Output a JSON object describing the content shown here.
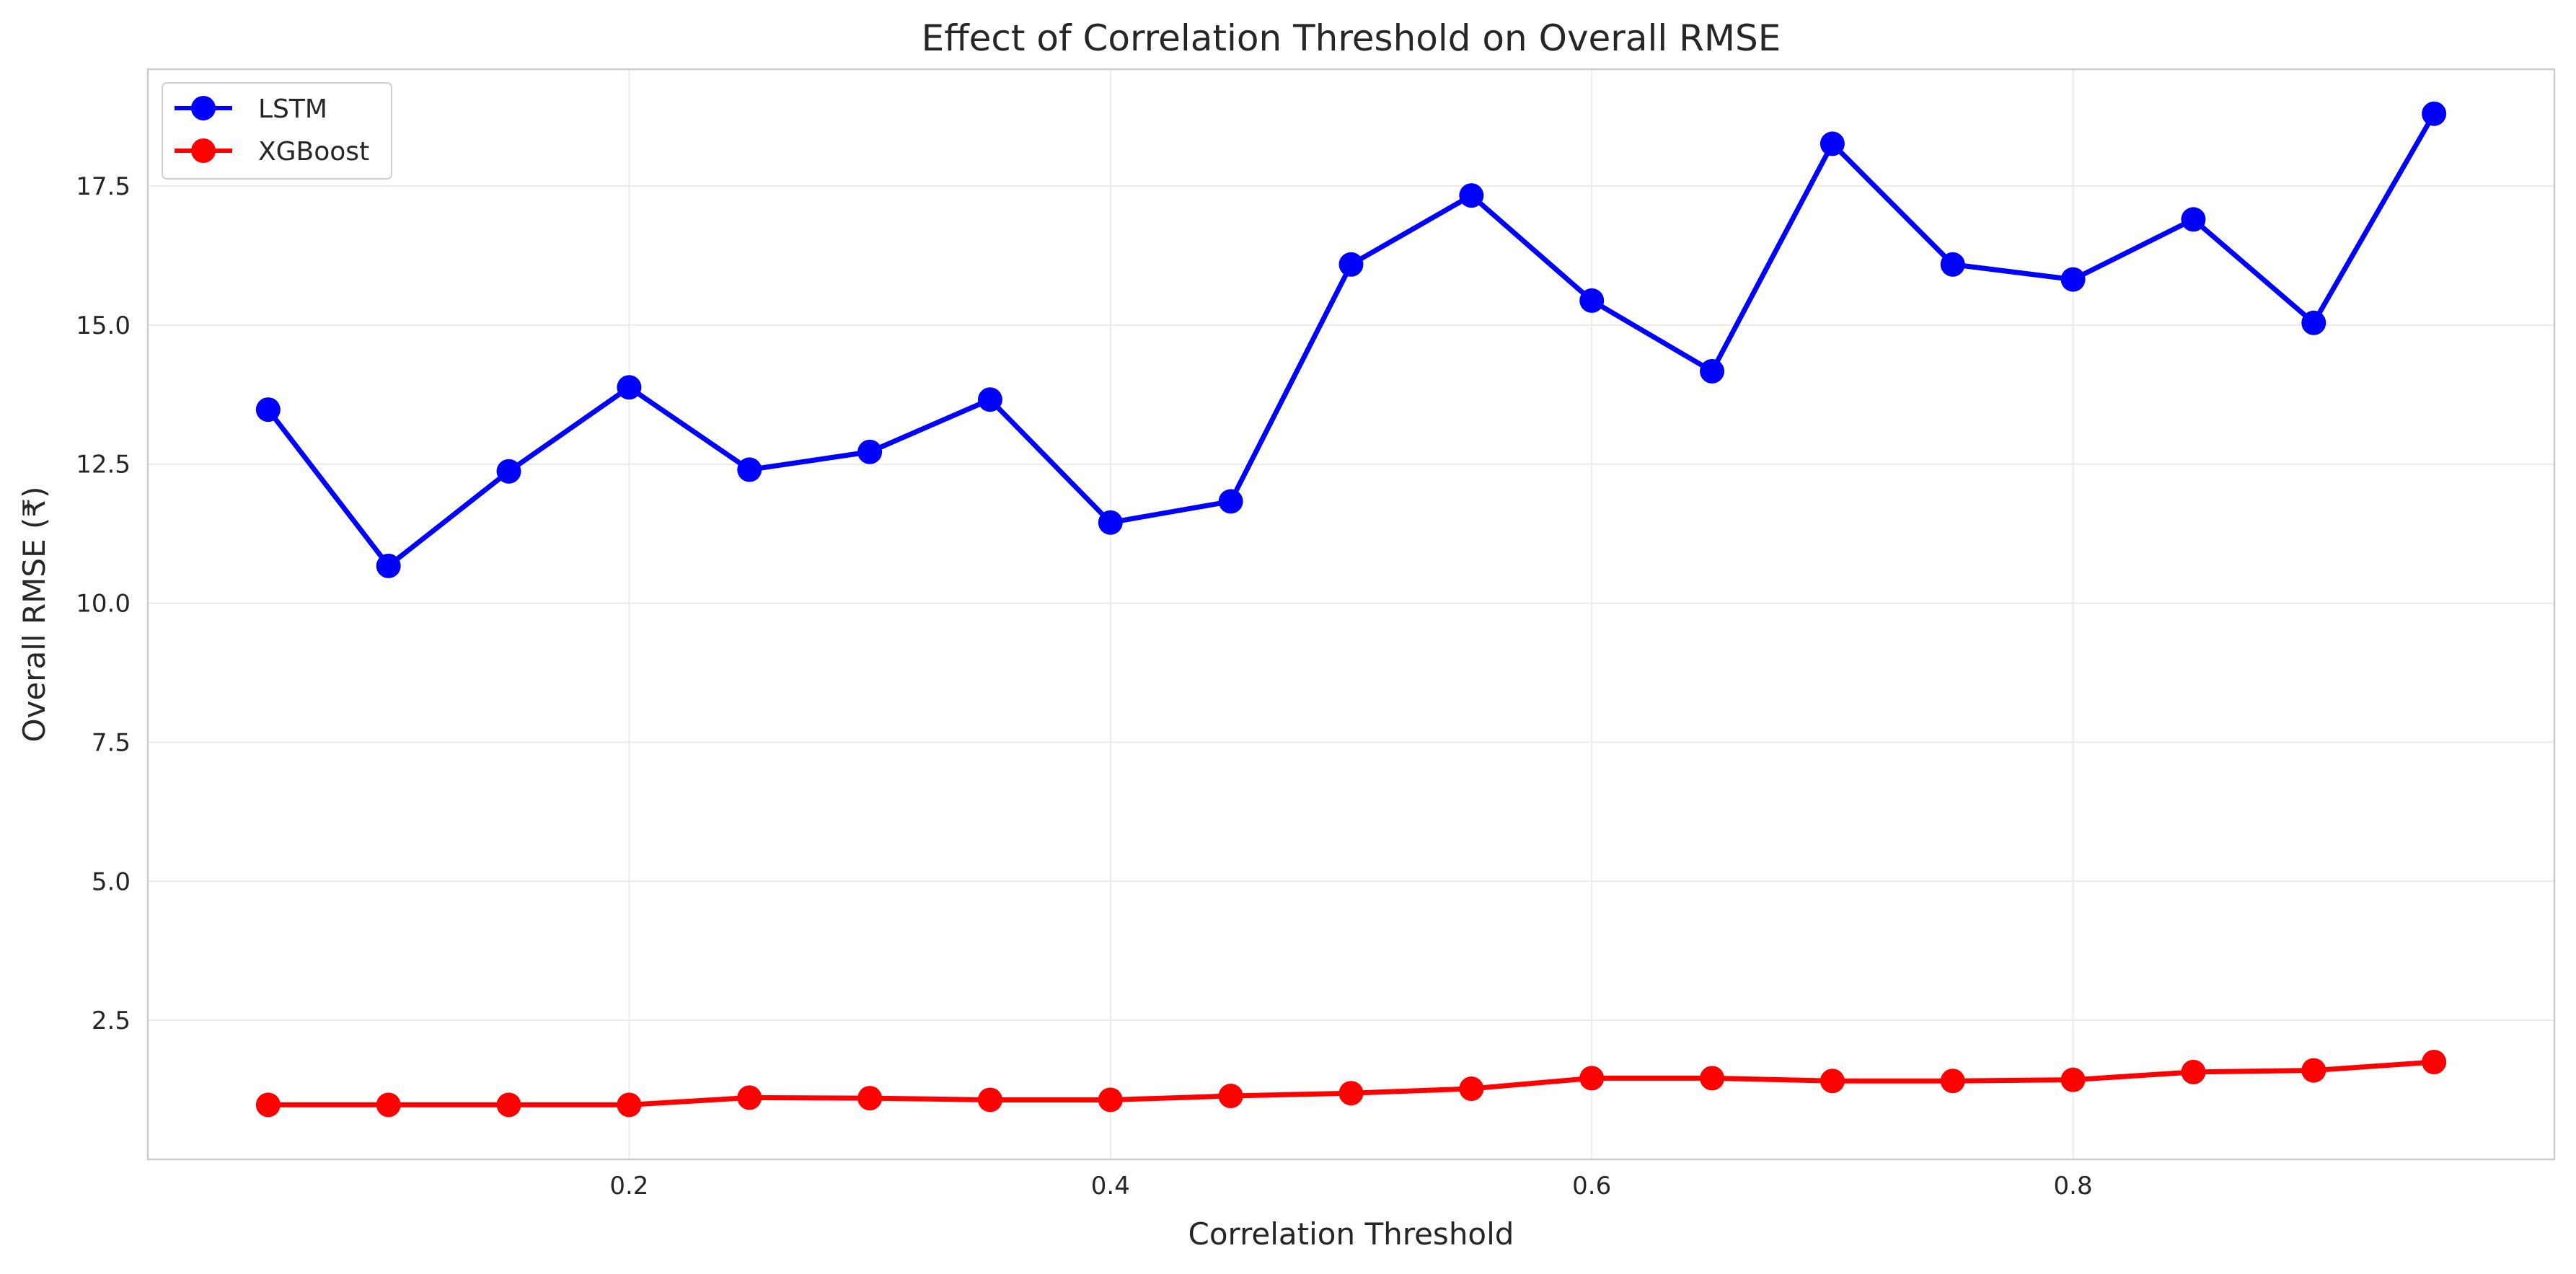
{
  "chart_data": {
    "type": "line",
    "title": "Effect of Correlation Threshold on Overall RMSE",
    "xlabel": "Correlation Threshold",
    "ylabel": "Overall RMSE (₹)",
    "x": [
      0.05,
      0.1,
      0.15,
      0.2,
      0.25,
      0.3,
      0.35,
      0.4,
      0.45,
      0.5,
      0.55,
      0.6,
      0.65,
      0.7,
      0.75,
      0.8,
      0.85,
      0.9,
      0.95
    ],
    "xlim": [
      -0.0,
      1.0
    ],
    "ylim": [
      0.0,
      19.6
    ],
    "x_ticks": [
      "0.2",
      "0.4",
      "0.6",
      "0.8"
    ],
    "x_tick_values": [
      0.2,
      0.4,
      0.6,
      0.8
    ],
    "y_ticks": [
      "2.5",
      "5.0",
      "7.5",
      "10.0",
      "12.5",
      "15.0",
      "17.5"
    ],
    "y_tick_values": [
      2.5,
      5.0,
      7.5,
      10.0,
      12.5,
      15.0,
      17.5
    ],
    "grid": true,
    "legend_position": "top-left",
    "series": [
      {
        "name": "LSTM",
        "color": "#0000ff",
        "values": [
          13.48,
          10.67,
          12.37,
          13.88,
          12.4,
          12.72,
          13.66,
          11.45,
          11.83,
          16.09,
          17.33,
          15.44,
          14.17,
          18.26,
          16.09,
          15.82,
          16.9,
          15.04,
          18.8
        ]
      },
      {
        "name": "XGBoost",
        "color": "#ff0000",
        "values": [
          0.98,
          0.98,
          0.98,
          0.98,
          1.11,
          1.1,
          1.07,
          1.07,
          1.14,
          1.19,
          1.27,
          1.46,
          1.46,
          1.41,
          1.41,
          1.43,
          1.57,
          1.6,
          1.75
        ]
      }
    ]
  }
}
